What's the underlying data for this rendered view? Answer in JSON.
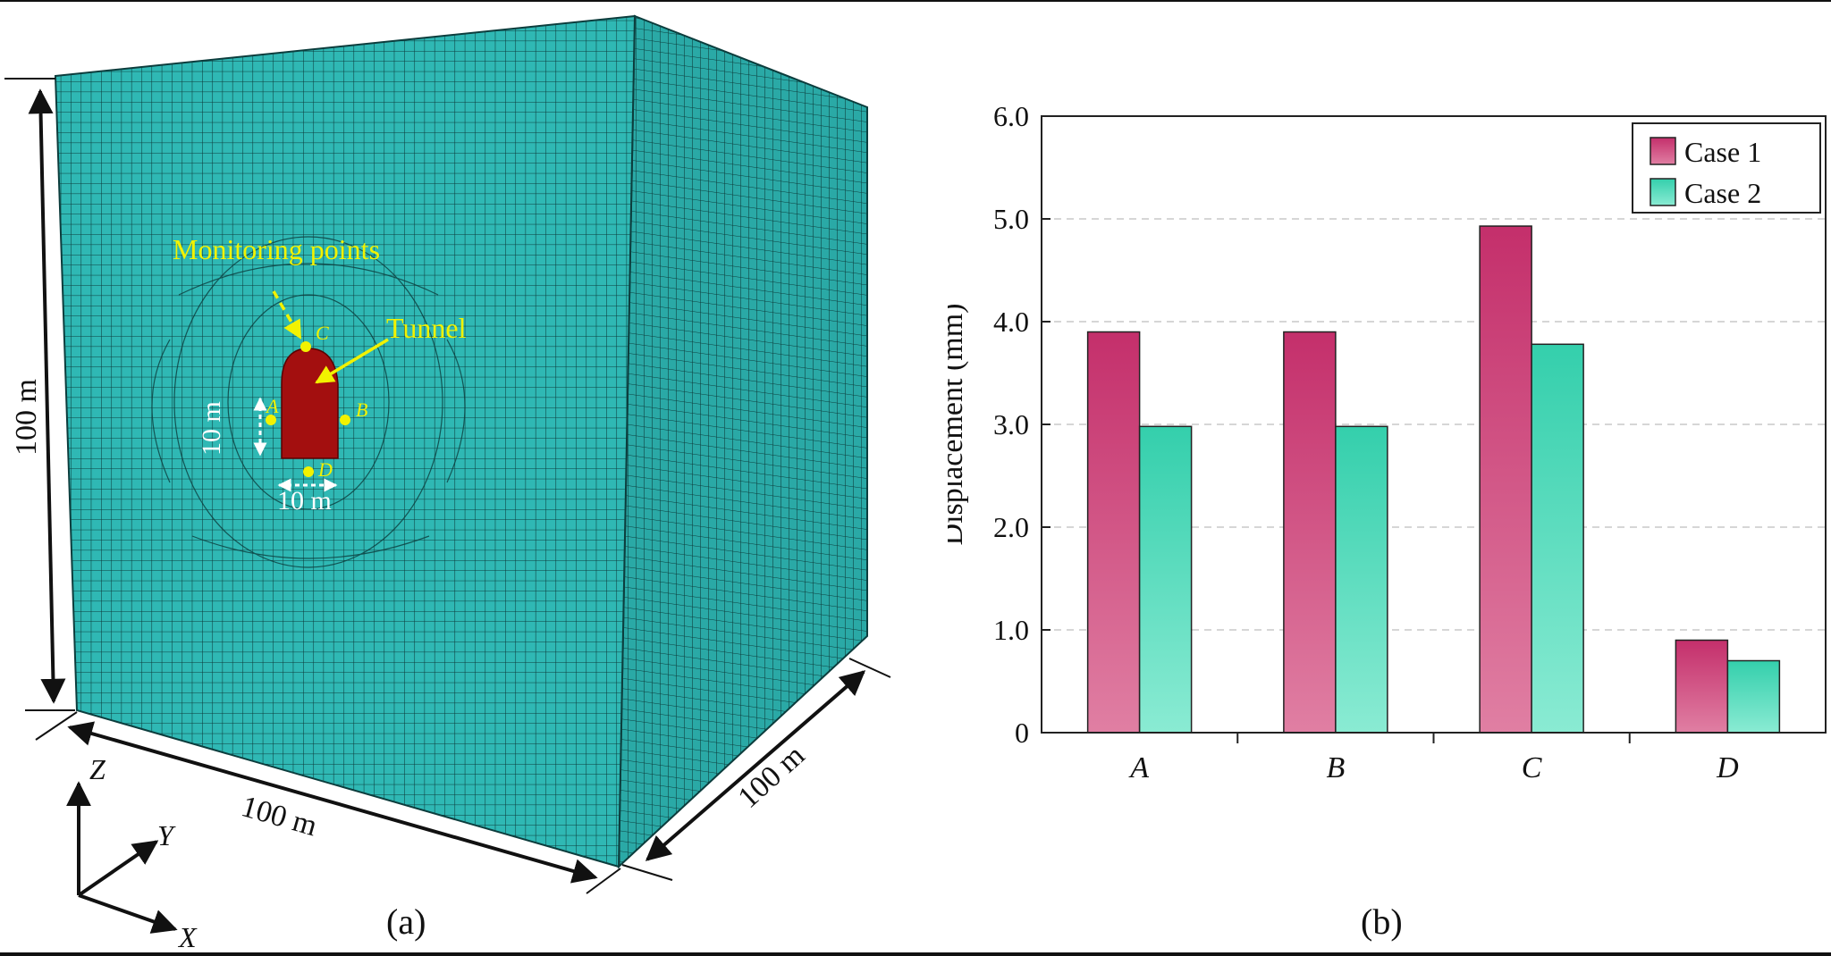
{
  "panel_a": {
    "caption": "(a)",
    "labels": {
      "monitoring_points": "Monitoring points",
      "tunnel": "Tunnel",
      "height": "100 m",
      "width": "100 m",
      "depth": "100 m",
      "tunnel_height": "10 m",
      "tunnel_width": "10 m",
      "point_a": "A",
      "point_b": "B",
      "point_c": "C",
      "point_d": "D",
      "axis_x": "X",
      "axis_y": "Y",
      "axis_z": "Z"
    },
    "colors": {
      "mesh_fill": "#2fb8b4",
      "mesh_lines": "#0a3a3a",
      "tunnel": "#a30f0f",
      "annotation": "#f2f200",
      "dimension": "#ffffff"
    }
  },
  "panel_b": {
    "caption": "(b)"
  },
  "chart_data": {
    "type": "bar",
    "categories": [
      "A",
      "B",
      "C",
      "D"
    ],
    "series": [
      {
        "name": "Case 1",
        "values": [
          3.9,
          3.9,
          4.93,
          0.9
        ],
        "color": "#c83a74"
      },
      {
        "name": "Case 2",
        "values": [
          2.98,
          2.98,
          3.78,
          0.7
        ],
        "color": "#3fd3b3"
      }
    ],
    "ylabel": "Displacement (mm)",
    "xlabel": "",
    "ylim": [
      0,
      6
    ],
    "yticks": [
      0,
      1,
      2,
      3,
      4,
      5,
      6
    ],
    "ytick_labels": [
      "0",
      "1.0",
      "2.0",
      "3.0",
      "4.0",
      "5.0",
      "6.0"
    ],
    "grid": "horizontal dashed",
    "legend": "top-right"
  }
}
